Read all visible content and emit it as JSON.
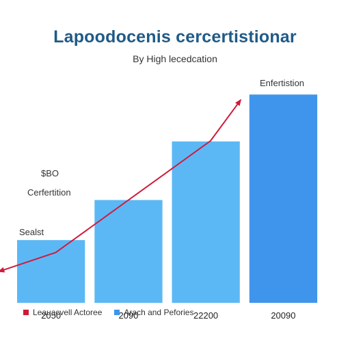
{
  "colors": {
    "bar": "#5cb8f5",
    "bar_last": "#3f95eb",
    "line": "#d01a3c",
    "title": "#1f5a87"
  },
  "chart_data": {
    "type": "bar",
    "title": "Lapoodocenis cercertistionar",
    "subtitle": "By High lecedcation",
    "categories": [
      "2050",
      "2090",
      "22200",
      "20090"
    ],
    "series": [
      {
        "name": "Arach and Pefories",
        "values": [
          91,
          149,
          234,
          302
        ]
      },
      {
        "name": "Leauacvell Actoree",
        "values": [
          73,
          154,
          235,
          296
        ]
      }
    ],
    "ylim": [
      0,
      330
    ],
    "annotations": {
      "value": "$BO",
      "left_label": "Cerfertition",
      "first_bar_label": "Sealst",
      "last_bar_label": "Enfertistion"
    },
    "legend": [
      {
        "label": "Leauacvell Actoree",
        "color": "#d01a3c"
      },
      {
        "label": "Arach and Pefories",
        "color": "#3f95eb"
      }
    ],
    "grid": false
  }
}
